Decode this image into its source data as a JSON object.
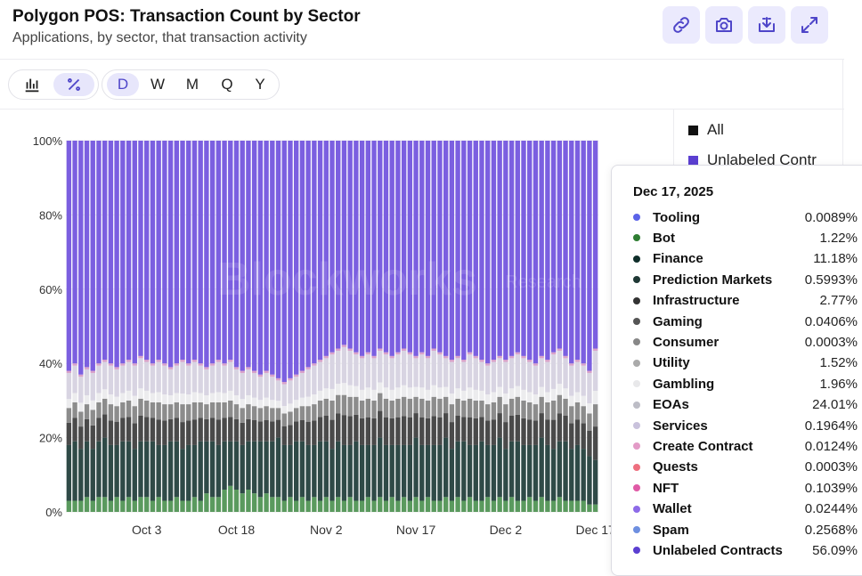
{
  "header": {
    "title": "Polygon POS: Transaction Count by Sector",
    "subtitle": "Applications, by sector, that transaction activity"
  },
  "toolbar": {
    "view_modes": [
      {
        "icon": "bar-chart-icon",
        "active": false
      },
      {
        "icon": "percent-icon",
        "active": true
      }
    ],
    "intervals": [
      {
        "label": "D",
        "active": true
      },
      {
        "label": "W",
        "active": false
      },
      {
        "label": "M",
        "active": false
      },
      {
        "label": "Q",
        "active": false
      },
      {
        "label": "Y",
        "active": false
      }
    ],
    "actions": [
      "link-icon",
      "camera-icon",
      "download-icon",
      "expand-icon"
    ]
  },
  "legend": {
    "items": [
      {
        "label": "All",
        "color": "#111111"
      },
      {
        "label": "Unlabeled Contr",
        "color": "#5b3fd1"
      }
    ]
  },
  "watermark": {
    "brand": "Blockworks",
    "tag": "Research"
  },
  "tooltip": {
    "date": "Dec 17, 2025",
    "rows": [
      {
        "label": "Tooling",
        "value": "0.0089%",
        "color": "#5b63e8"
      },
      {
        "label": "Bot",
        "value": "1.22%",
        "color": "#2e7d32"
      },
      {
        "label": "Finance",
        "value": "11.18%",
        "color": "#0f2e2a"
      },
      {
        "label": "Prediction Markets",
        "value": "0.5993%",
        "color": "#1f3835"
      },
      {
        "label": "Infrastructure",
        "value": "2.77%",
        "color": "#333333"
      },
      {
        "label": "Gaming",
        "value": "0.0406%",
        "color": "#555555"
      },
      {
        "label": "Consumer",
        "value": "0.0003%",
        "color": "#888888"
      },
      {
        "label": "Utility",
        "value": "1.52%",
        "color": "#aaaaaa"
      },
      {
        "label": "Gambling",
        "value": "1.96%",
        "color": "#e8e8ea"
      },
      {
        "label": "EOAs",
        "value": "24.01%",
        "color": "#bdbdc6"
      },
      {
        "label": "Services",
        "value": "0.1964%",
        "color": "#c9c2dc"
      },
      {
        "label": "Create Contract",
        "value": "0.0124%",
        "color": "#e39bc7"
      },
      {
        "label": "Quests",
        "value": "0.0003%",
        "color": "#ee6f7f"
      },
      {
        "label": "NFT",
        "value": "0.1039%",
        "color": "#e05aa6"
      },
      {
        "label": "Wallet",
        "value": "0.0244%",
        "color": "#8d6be8"
      },
      {
        "label": "Spam",
        "value": "0.2568%",
        "color": "#6e8fe0"
      },
      {
        "label": "Unlabeled Contracts",
        "value": "56.09%",
        "color": "#5b3fd1"
      }
    ]
  },
  "chart_data": {
    "type": "bar",
    "stacked": true,
    "normalized": true,
    "y_ticks": [
      "0%",
      "20%",
      "40%",
      "60%",
      "80%",
      "100%"
    ],
    "ylim": [
      0,
      100
    ],
    "x_ticks": [
      "Oct 3",
      "Oct 18",
      "Nov 2",
      "Nov 17",
      "Dec 2",
      "Dec 17"
    ],
    "x_range": [
      "Sep 20, 2025",
      "Dec 17, 2025"
    ],
    "bar_count": 89,
    "series_colors": {
      "Bot": "#5a9a5e",
      "Finance": "#2f4a47",
      "Infrastructure": "#4a4a4a",
      "Gaming/Consumer/Utility": "#8c8c8c",
      "Gambling": "#ececee",
      "EOAs": "#d8d4e2",
      "Create Contract/NFT": "#d9a3cb",
      "Unlabeled Contracts": "#7b5fe0"
    },
    "bot_pct": [
      3,
      3,
      3,
      4,
      3,
      4,
      4,
      3,
      4,
      3,
      4,
      3,
      4,
      4,
      3,
      4,
      3,
      3,
      4,
      3,
      3,
      4,
      3,
      5,
      4,
      4,
      6,
      7,
      6,
      5,
      6,
      5,
      4,
      5,
      4,
      4,
      3,
      4,
      3,
      4,
      3,
      4,
      3,
      4,
      3,
      4,
      3,
      4,
      3,
      3,
      4,
      3,
      4,
      3,
      4,
      3,
      4,
      3,
      4,
      3,
      4,
      3,
      3,
      4,
      3,
      4,
      3,
      4,
      3,
      3,
      4,
      3,
      4,
      3,
      4,
      3,
      3,
      4,
      3,
      4,
      3,
      3,
      4,
      3,
      3,
      3,
      3,
      2,
      2
    ],
    "finance_pct": [
      15,
      16,
      14,
      15,
      14,
      15,
      16,
      15,
      14,
      16,
      15,
      14,
      15,
      15,
      16,
      14,
      15,
      16,
      15,
      14,
      15,
      14,
      16,
      14,
      15,
      14,
      13,
      12,
      13,
      13,
      13,
      14,
      15,
      14,
      15,
      16,
      15,
      14,
      16,
      15,
      15,
      14,
      16,
      15,
      14,
      15,
      15,
      14,
      16,
      15,
      14,
      15,
      16,
      15,
      14,
      15,
      14,
      15,
      16,
      15,
      14,
      15,
      15,
      16,
      14,
      15,
      16,
      14,
      15,
      16,
      14,
      15,
      16,
      14,
      15,
      16,
      15,
      14,
      15,
      16,
      15,
      14,
      15,
      16,
      14,
      15,
      14,
      13,
      12
    ],
    "upper_pct": [
      38,
      40,
      37,
      39,
      38,
      40,
      41,
      40,
      39,
      40,
      41,
      40,
      42,
      41,
      40,
      41,
      40,
      39,
      40,
      41,
      40,
      41,
      40,
      39,
      40,
      41,
      40,
      41,
      39,
      38,
      39,
      38,
      37,
      38,
      37,
      36,
      35,
      36,
      37,
      38,
      39,
      40,
      41,
      42,
      43,
      44,
      45,
      44,
      43,
      42,
      43,
      42,
      44,
      43,
      42,
      43,
      44,
      43,
      42,
      43,
      42,
      44,
      43,
      42,
      41,
      42,
      41,
      43,
      42,
      41,
      40,
      41,
      42,
      41,
      42,
      43,
      42,
      41,
      40,
      42,
      41,
      43,
      44,
      42,
      40,
      41,
      40,
      38,
      44
    ],
    "unlabeled_pct": [
      62,
      60,
      63,
      61,
      62,
      60,
      59,
      60,
      61,
      60,
      59,
      60,
      58,
      59,
      60,
      59,
      60,
      61,
      60,
      59,
      60,
      59,
      60,
      61,
      60,
      59,
      60,
      59,
      61,
      62,
      61,
      62,
      63,
      62,
      63,
      64,
      65,
      64,
      63,
      62,
      61,
      60,
      59,
      58,
      57,
      56,
      55,
      56,
      57,
      58,
      57,
      58,
      56,
      57,
      58,
      57,
      56,
      57,
      58,
      57,
      58,
      56,
      57,
      58,
      59,
      58,
      59,
      57,
      58,
      59,
      60,
      59,
      58,
      59,
      58,
      57,
      58,
      59,
      60,
      58,
      59,
      57,
      56,
      58,
      60,
      59,
      60,
      62,
      56
    ]
  }
}
